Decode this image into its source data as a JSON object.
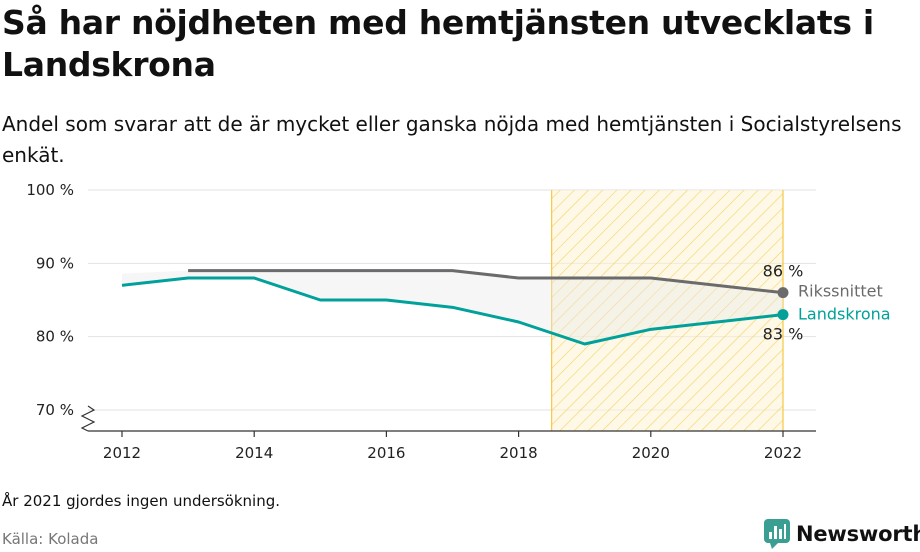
{
  "title": "Så har nöjdheten med hemtjänsten utvecklats i Landskrona",
  "subtitle": "Andel som svarar att de är mycket eller ganska nöjda med hemtjänsten i Socialstyrelsens enkät.",
  "footnote": "År 2021 gjordes ingen undersökning.",
  "source": "Källa: Kolada",
  "brand": "Newsworthy",
  "colors": {
    "riks": "#6b6b6e",
    "landskrona": "#00a19a",
    "highlight_stroke": "#f5c842",
    "highlight_fill": "#fdf3d4",
    "brand": "#3a9e93"
  },
  "chart_data": {
    "type": "line",
    "x_ticks": [
      2012,
      2014,
      2016,
      2018,
      2020,
      2022
    ],
    "y_ticks": [
      70,
      80,
      90,
      100
    ],
    "y_tick_labels": [
      "70 %",
      "80 %",
      "90 %",
      "100 %"
    ],
    "ylim": [
      68,
      100
    ],
    "xlim": [
      2011.5,
      2022.5
    ],
    "axis_break": true,
    "grid": "horizontal",
    "highlight_range": [
      2018.5,
      2022
    ],
    "series": [
      {
        "name": "Rikssnittet",
        "x": [
          2013,
          2014,
          2015,
          2016,
          2017,
          2018,
          2019,
          2020,
          2022
        ],
        "values": [
          89,
          89,
          89,
          89,
          89,
          88,
          88,
          88,
          86
        ],
        "end_label": "86 %"
      },
      {
        "name": "Landskrona",
        "x": [
          2012,
          2013,
          2014,
          2015,
          2016,
          2017,
          2018,
          2019,
          2020,
          2022
        ],
        "values": [
          87,
          88,
          88,
          85,
          85,
          84,
          82,
          79,
          81,
          83
        ],
        "end_label": "83 %"
      }
    ]
  }
}
